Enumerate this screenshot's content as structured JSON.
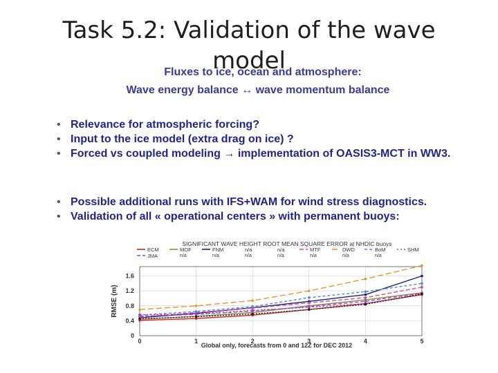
{
  "slide": {
    "title_line1": "Task 5.2:  Validation of the wave",
    "title_line2": "model",
    "subtitle1": "Fluxes to ice, ocean and atmosphere:",
    "subtitle2": "Wave energy balance  ↔  wave momentum balance",
    "bullets_a": [
      "Relevance for atmospheric forcing?",
      "Input to the ice model (extra drag on ice) ?",
      "Forced vs coupled modeling → implementation of OASIS3-MCT in WW3."
    ],
    "bullets_b": [
      "Possible additional runs with IFS+WAM for wind stress diagnostics.",
      "Validation of all « operational centers » with permanent buoys:"
    ]
  },
  "chart_data": {
    "type": "line",
    "title": "SIGNIFICANT WAVE HEIGHT ROOT MEAN SQUARE ERROR at NHDIC buoys",
    "xlabel": "Global only, forecasts from 0 and 12Z for DEC 2012",
    "ylabel": "RMSE (m)",
    "x": [
      0,
      1,
      2,
      3,
      4,
      5
    ],
    "xticks": [
      "0",
      "1",
      "2",
      "3",
      "4",
      "5"
    ],
    "yticks": [
      "0",
      "0.4",
      "0.8",
      "1.2",
      "1.6"
    ],
    "ytick_values": [
      0,
      0.4,
      0.8,
      1.2,
      1.6
    ],
    "xlim": [
      0,
      5
    ],
    "ylim": [
      0,
      1.85
    ],
    "grid": true,
    "legend_position": "top",
    "series": [
      {
        "name": "ECM",
        "color": "#d62020",
        "dash": "",
        "values": [
          0.41,
          0.46,
          0.55,
          0.7,
          0.86,
          1.1
        ]
      },
      {
        "name": "MOF",
        "color": "#8a8a3a",
        "dash": "",
        "values": [
          0.44,
          0.52,
          0.62,
          0.8,
          0.96,
          1.15
        ]
      },
      {
        "name": "FNM",
        "color": "#1c1c7a",
        "dash": "",
        "values": [
          0.48,
          0.6,
          0.75,
          0.92,
          1.1,
          1.6
        ]
      },
      {
        "name": "MTF",
        "color": "#d04aa0",
        "dash": "6,3",
        "values": [
          0.5,
          0.62,
          0.74,
          0.88,
          1.02,
          1.3
        ]
      },
      {
        "name": "DWD",
        "color": "#e8962a",
        "dash": "8,4",
        "values": [
          0.7,
          0.8,
          0.94,
          1.2,
          1.52,
          1.88
        ]
      },
      {
        "name": "BoM",
        "color": "#4a8ad0",
        "dash": "4,3",
        "values": [
          0.55,
          0.65,
          0.78,
          1.02,
          1.18,
          1.4
        ]
      },
      {
        "name": "SHM",
        "color": "#b030b0",
        "dash": "2,3",
        "values": [
          0.56,
          0.58,
          0.68,
          0.76,
          0.86,
          1.12
        ]
      },
      {
        "name": "JMA",
        "color": "#9a4ad0",
        "dash": "5,3",
        "values": [
          0.52,
          0.57,
          0.66,
          0.78,
          0.92,
          1.14
        ]
      },
      {
        "name": "",
        "color": "#202020",
        "dash": "2,2",
        "values": [
          0.45,
          0.51,
          0.58,
          0.7,
          0.84,
          1.12
        ]
      }
    ],
    "legend_rows": [
      [
        {
          "name": "ECM",
          "series": 0,
          "sub": ""
        },
        {
          "name": "MOF",
          "series": 1,
          "sub": "n/a"
        },
        {
          "name": "FNM",
          "series": 2,
          "sub": "n/a"
        },
        {
          "name": "n/a",
          "series": -1,
          "sub": "n/a"
        },
        {
          "name": "n/a",
          "series": -1,
          "sub": "n/a"
        },
        {
          "name": "MTF",
          "series": 3,
          "sub": "n/a"
        },
        {
          "name": "DWD",
          "series": 4,
          "sub": "n/a"
        },
        {
          "name": "BoM",
          "series": 5,
          "sub": "n/a"
        },
        {
          "name": "SHM",
          "series": 6,
          "sub": ""
        }
      ],
      [
        {
          "name": "JMA",
          "series": 7,
          "sub": ""
        }
      ]
    ]
  }
}
